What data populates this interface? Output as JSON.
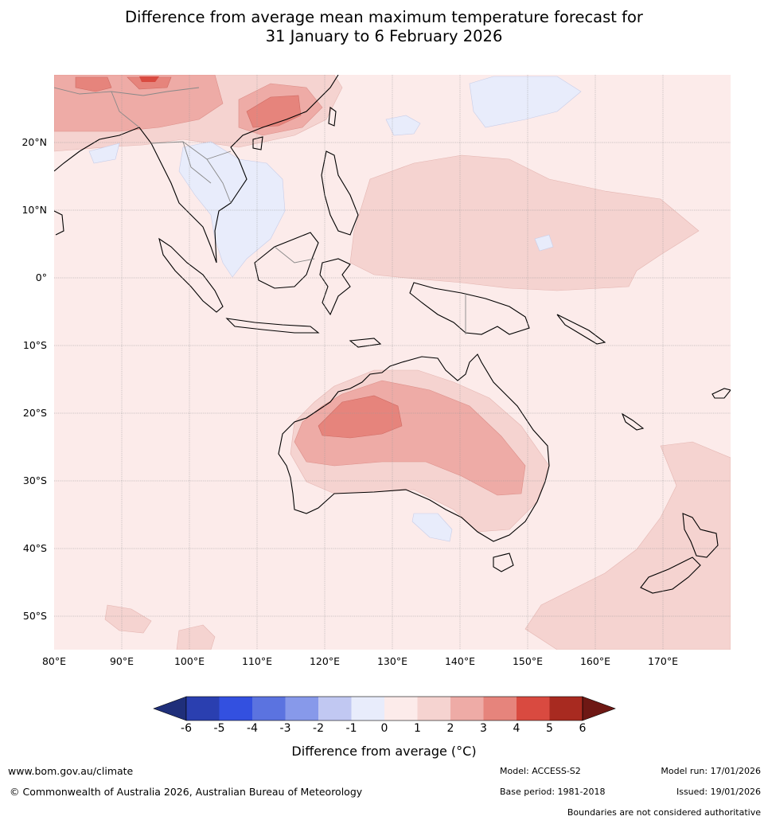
{
  "title": {
    "line1": "Difference from average mean maximum temperature forecast for",
    "line2": "31 January to 6 February 2026"
  },
  "map": {
    "lat_labels": [
      "20°N",
      "10°N",
      "0°",
      "10°S",
      "20°S",
      "30°S",
      "40°S",
      "50°S"
    ],
    "lon_labels": [
      "80°E",
      "90°E",
      "100°E",
      "110°E",
      "120°E",
      "130°E",
      "140°E",
      "150°E",
      "160°E",
      "170°E"
    ],
    "extent": {
      "lon_min": 80,
      "lon_max": 180,
      "lat_min": -55,
      "lat_max": 30
    }
  },
  "colorbar": {
    "title": "Difference from average (°C)",
    "ticks": [
      "-6",
      "-5",
      "-4",
      "-3",
      "-2",
      "-1",
      "0",
      "1",
      "2",
      "3",
      "4",
      "5",
      "6"
    ],
    "colors": [
      "#1f2f7a",
      "#2a3fb0",
      "#3350e0",
      "#5b73e0",
      "#8799ea",
      "#c1c8f2",
      "#e8ecfb",
      "#fcebea",
      "#f5d3d0",
      "#eeaba6",
      "#e6847c",
      "#d94a40",
      "#a82a20",
      "#6e1814"
    ]
  },
  "footer": {
    "website": "www.bom.gov.au/climate",
    "copyright": "© Commonwealth of Australia 2026, Australian Bureau of Meteorology",
    "model": "Model: ACCESS-S2",
    "model_run": "Model run: 17/01/2026",
    "base_period": "Base period: 1981-2018",
    "issued": "Issued: 19/01/2026",
    "boundaries": "Boundaries are not considered authoritative"
  }
}
